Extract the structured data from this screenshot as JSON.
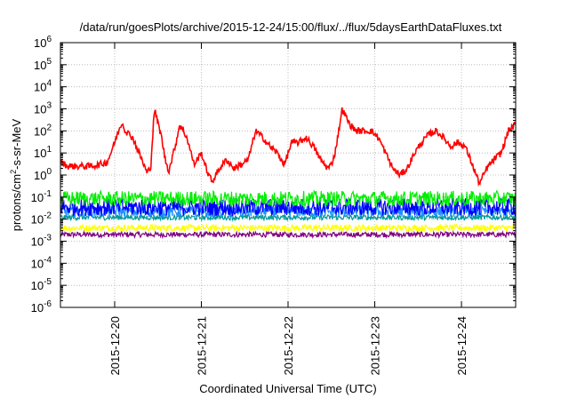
{
  "chart_data": {
    "type": "line",
    "title": "/data/run/goesPlots/archive/2015-12-24/15:00/flux/../flux/5daysEarthDataFluxes.txt",
    "xlabel": "Coordinated Universal Time (UTC)",
    "ylabel_parts": [
      "protons/cm",
      "2",
      "-s-sr-MeV"
    ],
    "x_start": "2015-12-19T09:00",
    "x_end": "2015-12-24T15:00",
    "xticks": [
      "2015-12-20",
      "2015-12-21",
      "2015-12-22",
      "2015-12-23",
      "2015-12-24"
    ],
    "yscale": "log",
    "ylim": [
      1e-06,
      1000000.0
    ],
    "yticks": [
      {
        "base": "10",
        "exp": "-6"
      },
      {
        "base": "10",
        "exp": "-5"
      },
      {
        "base": "10",
        "exp": "-4"
      },
      {
        "base": "10",
        "exp": "-3"
      },
      {
        "base": "10",
        "exp": "-2"
      },
      {
        "base": "10",
        "exp": "-1"
      },
      {
        "base": "10",
        "exp": "0"
      },
      {
        "base": "10",
        "exp": "1"
      },
      {
        "base": "10",
        "exp": "2"
      },
      {
        "base": "10",
        "exp": "3"
      },
      {
        "base": "10",
        "exp": "4"
      },
      {
        "base": "10",
        "exp": "5"
      },
      {
        "base": "10",
        "exp": "6"
      }
    ],
    "grid": true,
    "series": [
      {
        "color": "#ff0000",
        "noise": 0.15,
        "x": [
          "2015-12-19T09:00",
          "2015-12-19T11:00",
          "2015-12-19T14:00",
          "2015-12-19T17:00",
          "2015-12-19T20:00",
          "2015-12-19T22:00",
          "2015-12-20T00:00",
          "2015-12-20T02:00",
          "2015-12-20T03:00",
          "2015-12-20T05:00",
          "2015-12-20T07:00",
          "2015-12-20T09:00",
          "2015-12-20T10:00",
          "2015-12-20T11:00",
          "2015-12-20T13:00",
          "2015-12-20T14:00",
          "2015-12-20T15:00",
          "2015-12-20T17:00",
          "2015-12-20T18:00",
          "2015-12-20T20:00",
          "2015-12-20T22:00",
          "2015-12-21T00:00",
          "2015-12-21T01:00",
          "2015-12-21T02:00",
          "2015-12-21T03:00",
          "2015-12-21T05:00",
          "2015-12-21T07:00",
          "2015-12-21T09:00",
          "2015-12-21T11:00",
          "2015-12-21T13:00",
          "2015-12-21T15:00",
          "2015-12-21T17:00",
          "2015-12-21T19:00",
          "2015-12-21T21:00",
          "2015-12-21T23:00",
          "2015-12-22T01:00",
          "2015-12-22T03:00",
          "2015-12-22T05:00",
          "2015-12-22T07:00",
          "2015-12-22T09:00",
          "2015-12-22T11:00",
          "2015-12-22T12:00",
          "2015-12-22T13:00",
          "2015-12-22T15:00",
          "2015-12-22T17:00",
          "2015-12-22T19:00",
          "2015-12-22T21:00",
          "2015-12-22T23:00",
          "2015-12-23T01:00",
          "2015-12-23T03:00",
          "2015-12-23T05:00",
          "2015-12-23T07:00",
          "2015-12-23T09:00",
          "2015-12-23T11:00",
          "2015-12-23T13:00",
          "2015-12-23T15:00",
          "2015-12-23T17:00",
          "2015-12-23T19:00",
          "2015-12-23T21:00",
          "2015-12-23T23:00",
          "2015-12-24T01:00",
          "2015-12-24T03:00",
          "2015-12-24T05:00",
          "2015-12-24T07:00",
          "2015-12-24T09:00",
          "2015-12-24T11:00",
          "2015-12-24T13:00",
          "2015-12-24T15:00"
        ],
        "y": [
          4,
          2.5,
          2.5,
          2.5,
          3,
          4,
          30,
          250,
          100,
          50,
          8,
          1.2,
          2.5,
          1000,
          50,
          5,
          1.5,
          30,
          200,
          50,
          3,
          10,
          3,
          1,
          0.5,
          2,
          5,
          2,
          3,
          5,
          100,
          50,
          20,
          10,
          3,
          30,
          30,
          50,
          20,
          5,
          2,
          3,
          10,
          1000,
          200,
          100,
          100,
          100,
          50,
          10,
          2,
          1,
          2,
          10,
          30,
          70,
          100,
          50,
          20,
          30,
          20,
          3,
          0.4,
          2,
          5,
          10,
          100,
          200
        ]
      },
      {
        "color": "#00ee00",
        "base": 0.085,
        "noise": 0.35
      },
      {
        "color": "#0000ff",
        "base": 0.035,
        "noise": 0.4
      },
      {
        "color": "#1e90ff",
        "base": 0.022,
        "noise": 0.25
      },
      {
        "color": "#009999",
        "base": 0.012,
        "noise": 0.12
      },
      {
        "color": "#ffff00",
        "base": 0.004,
        "noise": 0.15
      },
      {
        "color": "#800080",
        "base": 0.002,
        "noise": 0.12
      }
    ]
  }
}
